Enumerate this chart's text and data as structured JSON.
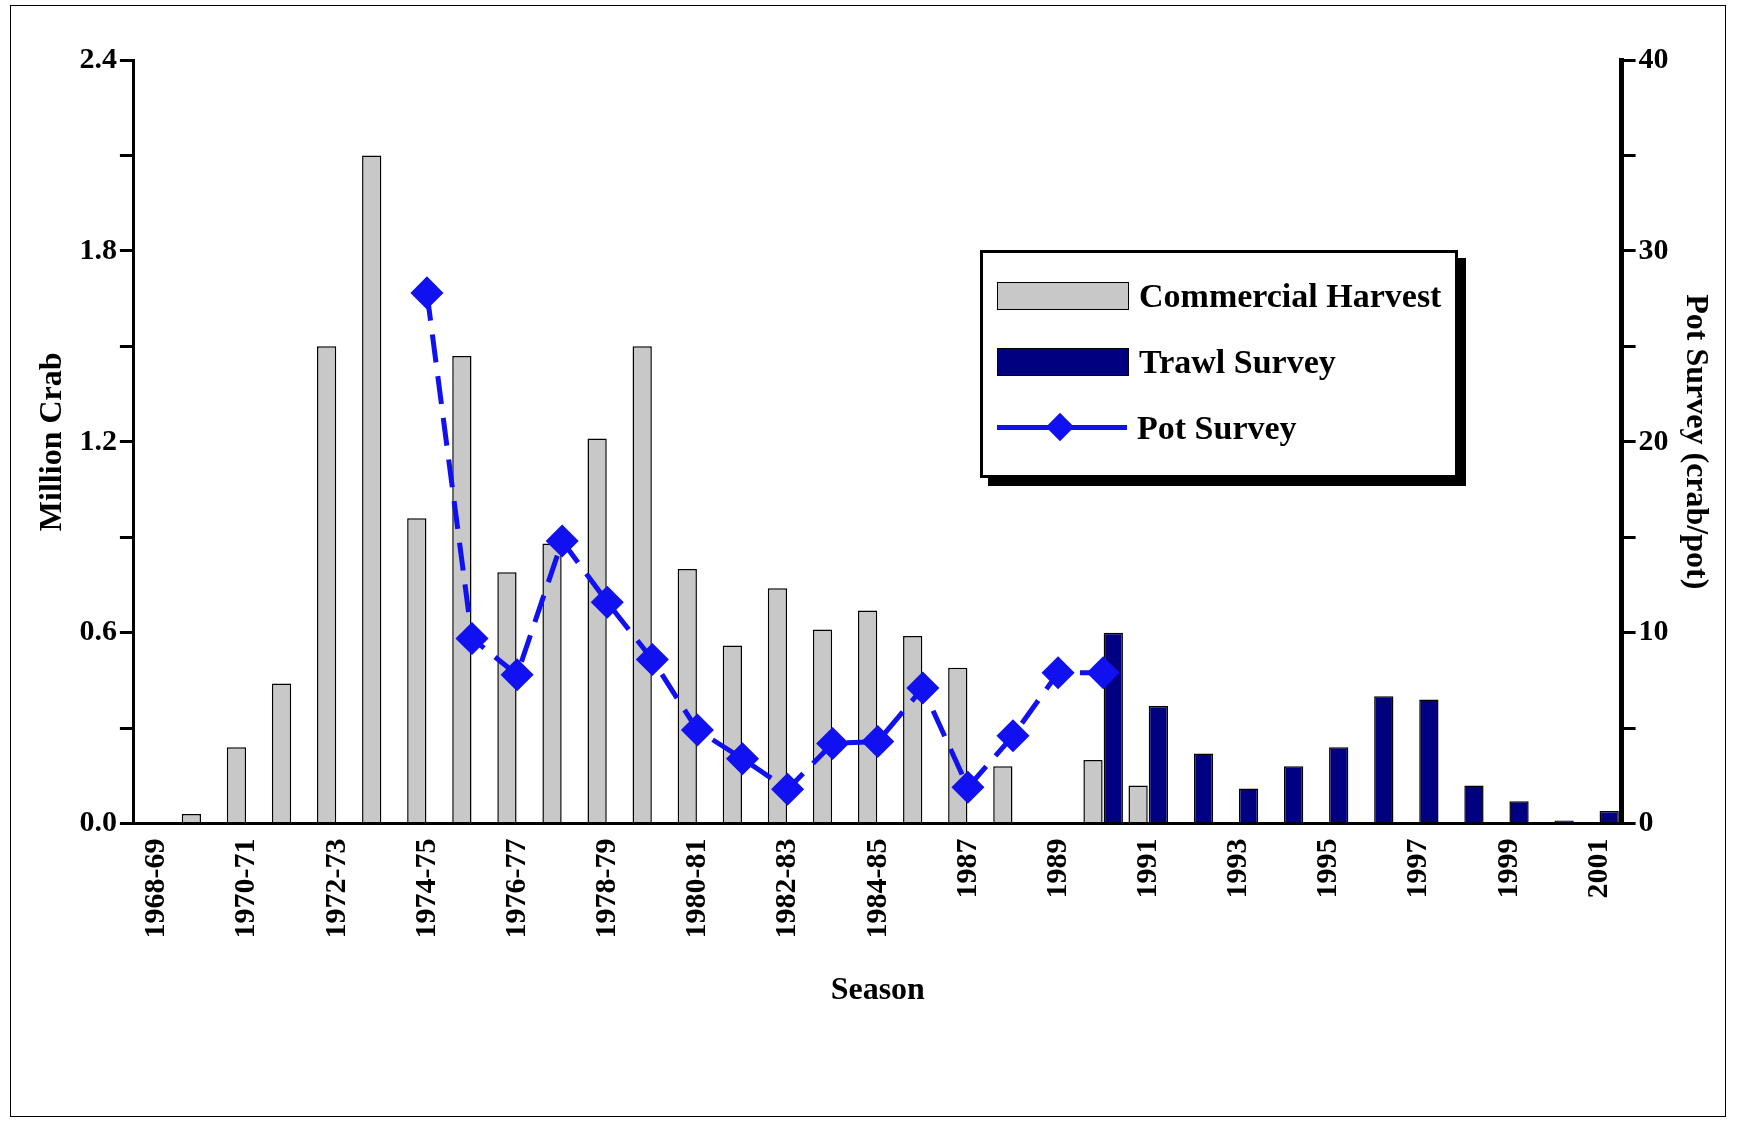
{
  "chart_data": {
    "type": "bar",
    "xlabel": "Season",
    "ylabel": "Million Crab",
    "y2label": "Pot Survey (crab/pot)",
    "categories": [
      "1968-69",
      null,
      "1970-71",
      null,
      "1972-73",
      null,
      "1974-75",
      null,
      "1976-77",
      null,
      "1978-79",
      null,
      "1980-81",
      null,
      "1982-83",
      null,
      "1984-85",
      null,
      "1987",
      null,
      "1989",
      null,
      "1991",
      null,
      "1993",
      null,
      "1995",
      null,
      "1997",
      null,
      "1999",
      null,
      "2001"
    ],
    "series": [
      {
        "name": "Commercial Harvest",
        "color": "#c8c8c8",
        "values": [
          null,
          0.03,
          0.24,
          0.44,
          1.5,
          2.1,
          0.96,
          1.47,
          0.79,
          0.88,
          1.21,
          1.5,
          0.8,
          0.56,
          0.74,
          0.61,
          0.67,
          0.59,
          0.49,
          0.18,
          null,
          0.2,
          0.12,
          null,
          null,
          null,
          null,
          null,
          null,
          null,
          null,
          null,
          null
        ]
      },
      {
        "name": "Trawl Survey",
        "color": "#000080",
        "values": [
          null,
          null,
          null,
          null,
          null,
          null,
          null,
          null,
          null,
          null,
          null,
          null,
          null,
          null,
          null,
          null,
          null,
          null,
          null,
          null,
          null,
          0.6,
          0.37,
          0.22,
          0.11,
          0.18,
          0.24,
          0.4,
          0.39,
          0.12,
          0.07,
          0.01,
          0.04
        ]
      },
      {
        "name": "Pot Survey",
        "type": "line",
        "axis": "y2",
        "color": "#1010f0",
        "marker": "diamond",
        "line_style": "dashed",
        "values": [
          null,
          null,
          null,
          null,
          null,
          null,
          27.8,
          9.7,
          7.8,
          14.8,
          11.6,
          8.6,
          4.9,
          3.4,
          1.8,
          4.2,
          4.3,
          7.1,
          1.9,
          4.6,
          7.9,
          7.9,
          null,
          null,
          null,
          null,
          null,
          null,
          null,
          null,
          null,
          null,
          null
        ]
      }
    ],
    "ylim": [
      0,
      2.4
    ],
    "yticks": [
      {
        "value": 0,
        "label": "0.0"
      },
      {
        "value": 0.3,
        "label": null
      },
      {
        "value": 0.6,
        "label": "0.6"
      },
      {
        "value": 0.9,
        "label": null
      },
      {
        "value": 1.2,
        "label": "1.2"
      },
      {
        "value": 1.5,
        "label": null
      },
      {
        "value": 1.8,
        "label": "1.8"
      },
      {
        "value": 2.1,
        "label": null
      },
      {
        "value": 2.4,
        "label": "2.4"
      }
    ],
    "y2lim": [
      0,
      40
    ],
    "y2ticks": [
      0,
      {
        "value": 5,
        "label": null
      },
      10,
      {
        "value": 15,
        "label": null
      },
      20,
      {
        "value": 25,
        "label": null
      },
      30,
      {
        "value": 35,
        "label": null
      },
      40
    ],
    "grid": false,
    "legend": "top right"
  }
}
